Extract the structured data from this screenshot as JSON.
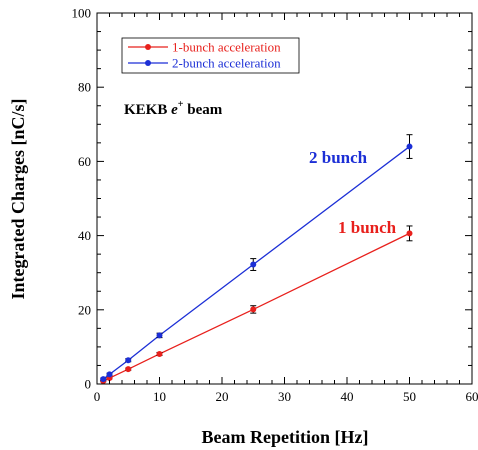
{
  "chart_data": {
    "type": "line",
    "xlabel": "Beam Repetition [Hz]",
    "ylabel": "Integrated Charges [nC/s]",
    "xlim": [
      0,
      60
    ],
    "ylim": [
      0,
      100
    ],
    "x_ticks": [
      0,
      10,
      20,
      30,
      40,
      50,
      60
    ],
    "x_tick_labels": [
      "0",
      "10",
      "20",
      "30",
      "40",
      "50",
      "60"
    ],
    "y_ticks": [
      0,
      20,
      40,
      60,
      80,
      100
    ],
    "y_tick_labels": [
      "0",
      "20",
      "40",
      "60",
      "80",
      "100"
    ],
    "grid": false,
    "legend_position": "top-left",
    "series": [
      {
        "name": "1-bunch acceleration",
        "color": "#e8201c",
        "x": [
          1,
          2,
          5,
          10,
          25,
          50
        ],
        "y": [
          0.8,
          1.6,
          4.0,
          8.1,
          20.1,
          40.6
        ],
        "yerr": [
          0.2,
          0.2,
          0.3,
          0.4,
          1.0,
          2.0
        ]
      },
      {
        "name": "2-bunch acceleration",
        "color": "#1c2fd6",
        "x": [
          1,
          2,
          5,
          10,
          25,
          50
        ],
        "y": [
          1.3,
          2.6,
          6.4,
          13.1,
          32.2,
          64.0
        ],
        "yerr": [
          0.3,
          0.3,
          0.4,
          0.6,
          1.6,
          3.2
        ]
      }
    ],
    "annotations": {
      "beam_prefix": "KEKB ",
      "beam_particle": "e",
      "beam_charge": "+",
      "beam_suffix": " beam",
      "label_2bunch": "2 bunch",
      "label_1bunch": "1 bunch"
    }
  }
}
